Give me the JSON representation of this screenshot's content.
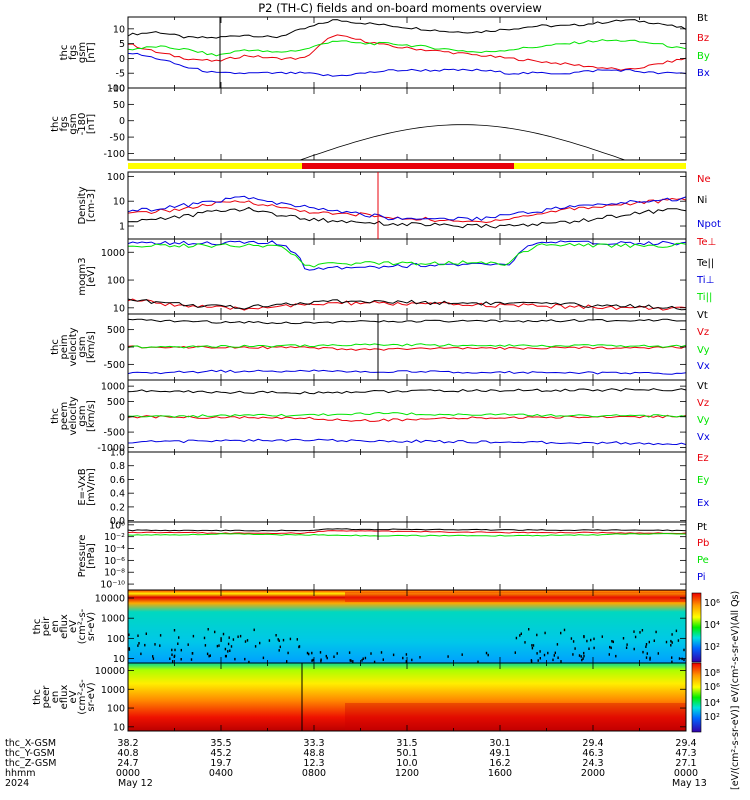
{
  "title": "P2 (TH-C) fields and on-board moments overview",
  "colors": {
    "black": "#000000",
    "red": "#e8000b",
    "green": "#00e400",
    "blue": "#0000e0",
    "yellow": "#ffff00"
  },
  "chart_data": [
    {
      "type": "line",
      "ylabel": [
        "thc",
        "fgs",
        "gsm",
        "[nT]"
      ],
      "ylim": [
        -10,
        14
      ],
      "yticks": [
        "10",
        "5",
        "0",
        "-5",
        "-10"
      ],
      "ytick_values": [
        10,
        5,
        0,
        -5,
        -10
      ],
      "series": [
        {
          "name": "Bt",
          "color": "black",
          "values": [
            8,
            9,
            7,
            7,
            8,
            7,
            10,
            13,
            12,
            11,
            10,
            9,
            9,
            10,
            11,
            11,
            12,
            13,
            12,
            10
          ]
        },
        {
          "name": "Bz",
          "color": "red",
          "values": [
            5,
            2,
            0,
            -1,
            1,
            0,
            0,
            8,
            6,
            4,
            3,
            2,
            1,
            0,
            -1,
            -2,
            -3,
            -4,
            -2,
            0
          ]
        },
        {
          "name": "By",
          "color": "green",
          "values": [
            3,
            4,
            3,
            1,
            3,
            2,
            3,
            6,
            5,
            5,
            4,
            3,
            2,
            3,
            4,
            5,
            6,
            6,
            5,
            3
          ]
        },
        {
          "name": "Bx",
          "color": "blue",
          "values": [
            2,
            0,
            -3,
            -5,
            -5,
            -5,
            -5,
            -6,
            -5,
            -4,
            -4,
            -4,
            -4,
            -5,
            -5,
            -5,
            -4,
            -4,
            -5,
            -5
          ]
        }
      ]
    },
    {
      "type": "line",
      "ylabel": [
        "thc",
        "fgs",
        "gsm",
        "-180",
        "[nT]"
      ],
      "ylim": [
        -120,
        100
      ],
      "yticks": [
        "100",
        "50",
        "0",
        "-50",
        "-100"
      ],
      "ytick_values": [
        100,
        50,
        0,
        -50,
        -100
      ]
    },
    {
      "type": "line",
      "ylabel": [
        "Density",
        "[cm-3]"
      ],
      "scale": "log",
      "ylim": [
        0.3,
        150
      ],
      "yticks": [
        "100",
        "10",
        "1"
      ],
      "ytick_values": [
        100,
        10,
        1
      ],
      "series": [
        {
          "name": "Ne",
          "color": "red",
          "values": [
            3,
            4,
            5,
            8,
            10,
            6,
            4,
            3,
            3,
            2,
            2,
            1.5,
            1.5,
            2,
            3,
            5,
            6,
            8,
            10,
            12
          ]
        },
        {
          "name": "Ni",
          "color": "black",
          "values": [
            1.5,
            2,
            2.5,
            4,
            5,
            3,
            2,
            1.6,
            1.5,
            1.2,
            1.2,
            1,
            1,
            1,
            1.2,
            1.5,
            2,
            3,
            4,
            5
          ]
        },
        {
          "name": "Npot",
          "color": "blue",
          "values": [
            4,
            5,
            7,
            10,
            15,
            8,
            6,
            4,
            3,
            2,
            2,
            2,
            2,
            3,
            4,
            6,
            7,
            9,
            11,
            13
          ]
        }
      ]
    },
    {
      "type": "line",
      "ylabel": [
        "moqm3",
        "[eV]"
      ],
      "scale": "log",
      "ylim": [
        6,
        3000
      ],
      "yticks": [
        "1000",
        "100",
        "10"
      ],
      "ytick_values": [
        1000,
        100,
        10
      ],
      "series": [
        {
          "name": "Te⊥",
          "color": "red",
          "values": [
            20,
            15,
            12,
            10,
            9,
            12,
            12,
            15,
            15,
            14,
            14,
            13,
            13,
            12,
            12,
            11,
            11,
            10,
            10,
            9
          ]
        },
        {
          "name": "Te||",
          "color": "black",
          "values": [
            22,
            16,
            13,
            11,
            10,
            14,
            14,
            18,
            17,
            16,
            16,
            15,
            15,
            14,
            14,
            13,
            12,
            12,
            11,
            10
          ]
        },
        {
          "name": "Ti⊥",
          "color": "blue",
          "values": [
            2200,
            2200,
            2200,
            2200,
            2200,
            2200,
            250,
            300,
            300,
            320,
            350,
            360,
            350,
            340,
            2200,
            2200,
            2200,
            2200,
            2200,
            2200
          ]
        },
        {
          "name": "Ti||",
          "color": "green",
          "values": [
            1800,
            1800,
            1800,
            1800,
            1800,
            1800,
            300,
            380,
            400,
            420,
            420,
            430,
            420,
            400,
            1800,
            1800,
            1800,
            1800,
            1800,
            1800
          ]
        }
      ]
    },
    {
      "type": "line",
      "ylabel": [
        "thc",
        "peim",
        "velocity",
        "gsm",
        "[km/s]"
      ],
      "ylim": [
        -950,
        950
      ],
      "yticks": [
        "500",
        "0",
        "-500"
      ],
      "ytick_values": [
        500,
        0,
        -500
      ],
      "series": [
        {
          "name": "Vt",
          "color": "black",
          "values": [
            780,
            760,
            740,
            720,
            720,
            700,
            700,
            720,
            730,
            730,
            740,
            740,
            740,
            750,
            750,
            760,
            760,
            770,
            780,
            780
          ]
        },
        {
          "name": "Vz",
          "color": "red",
          "values": [
            0,
            0,
            0,
            0,
            0,
            -20,
            -20,
            -60,
            -80,
            -60,
            -50,
            -40,
            -40,
            -40,
            -30,
            -30,
            -20,
            -20,
            -10,
            0
          ]
        },
        {
          "name": "Vy",
          "color": "green",
          "values": [
            10,
            10,
            10,
            20,
            20,
            30,
            40,
            50,
            60,
            60,
            60,
            50,
            50,
            50,
            40,
            40,
            40,
            30,
            20,
            20
          ]
        },
        {
          "name": "Vx",
          "color": "blue",
          "values": [
            -760,
            -740,
            -720,
            -700,
            -700,
            -700,
            -690,
            -700,
            -700,
            -710,
            -710,
            -720,
            -720,
            -730,
            -740,
            -740,
            -750,
            -750,
            -760,
            -760
          ]
        }
      ]
    },
    {
      "type": "line",
      "ylabel": [
        "thc",
        "peem",
        "velocity",
        "gsm",
        "[km/s]"
      ],
      "ylim": [
        -1150,
        1200
      ],
      "yticks": [
        "1000",
        "500",
        "0",
        "-500",
        "-1000"
      ],
      "ytick_values": [
        1000,
        500,
        0,
        -500,
        -1000
      ],
      "series": [
        {
          "name": "Vt",
          "color": "black",
          "values": [
            850,
            830,
            820,
            800,
            800,
            790,
            780,
            800,
            820,
            830,
            840,
            850,
            850,
            860,
            860,
            870,
            870,
            880,
            880,
            890
          ]
        },
        {
          "name": "Vz",
          "color": "red",
          "values": [
            0,
            0,
            -20,
            -20,
            -30,
            -40,
            -40,
            -100,
            -120,
            -100,
            -80,
            -60,
            -40,
            -30,
            -20,
            -10,
            0,
            0,
            10,
            10
          ]
        },
        {
          "name": "Vy",
          "color": "green",
          "values": [
            20,
            20,
            20,
            30,
            30,
            40,
            50,
            80,
            100,
            100,
            90,
            80,
            70,
            60,
            50,
            40,
            40,
            30,
            30,
            20
          ]
        },
        {
          "name": "Vx",
          "color": "blue",
          "values": [
            -820,
            -810,
            -800,
            -780,
            -780,
            -770,
            -760,
            -780,
            -790,
            -800,
            -800,
            -810,
            -820,
            -830,
            -840,
            -850,
            -850,
            -860,
            -870,
            -880
          ]
        }
      ]
    },
    {
      "type": "line",
      "ylabel": [
        "E=-VxB",
        "[mV/m]"
      ],
      "ylim": [
        -0.02,
        1.0
      ],
      "yticks": [
        "1.0",
        "0.8",
        "0.6",
        "0.4",
        "0.2",
        "0.0"
      ],
      "ytick_values": [
        1.0,
        0.8,
        0.6,
        0.4,
        0.2,
        0.0
      ],
      "series": [
        {
          "name": "Ez",
          "color": "red",
          "values": []
        },
        {
          "name": "Ey",
          "color": "green",
          "values": []
        },
        {
          "name": "Ex",
          "color": "blue",
          "values": []
        }
      ]
    },
    {
      "type": "line",
      "ylabel": [
        "Pressure",
        "[nPa]"
      ],
      "scale": "log",
      "ylim": [
        1e-11,
        3
      ],
      "yticks": [
        "10⁰",
        "10⁻²",
        "10⁻⁴",
        "10⁻⁶",
        "10⁻⁸",
        "10⁻¹⁰"
      ],
      "ytick_values": [
        1,
        0.01,
        0.0001,
        1e-06,
        1e-08,
        1e-10
      ],
      "series": [
        {
          "name": "Pt",
          "color": "black",
          "values": [
            0.12,
            0.12,
            0.12,
            0.11,
            0.11,
            0.11,
            0.11,
            0.2,
            0.18,
            0.17,
            0.16,
            0.15,
            0.15,
            0.14,
            0.14,
            0.13,
            0.13,
            0.13,
            0.12,
            0.12
          ]
        },
        {
          "name": "Pb",
          "color": "red",
          "values": [
            0.05,
            0.05,
            0.05,
            0.04,
            0.04,
            0.04,
            0.04,
            0.1,
            0.09,
            0.08,
            0.07,
            0.06,
            0.06,
            0.05,
            0.05,
            0.05,
            0.05,
            0.04,
            0.04,
            0.04
          ]
        },
        {
          "name": "Pe",
          "color": "green",
          "values": [
            0.02,
            0.02,
            0.02,
            0.03,
            0.03,
            0.02,
            0.02,
            0.02,
            0.015,
            0.015,
            0.015,
            0.015,
            0.015,
            0.015,
            0.015,
            0.02,
            0.02,
            0.03,
            0.03,
            0.03
          ]
        },
        {
          "name": "Pi",
          "color": "blue",
          "values": []
        }
      ]
    },
    {
      "type": "heatmap",
      "ylabel": [
        "thc",
        "peir",
        "en",
        "eflux",
        "eV",
        "(cm²-s-",
        "sr-eV)"
      ],
      "scale": "log",
      "ylim": [
        6,
        25000
      ],
      "yticks": [
        "10000",
        "1000",
        "100",
        "10"
      ],
      "ytick_values": [
        10000,
        1000,
        100,
        10
      ]
    },
    {
      "type": "heatmap",
      "ylabel": [
        "thc",
        "peer",
        "en",
        "eflux",
        "eV",
        "(cm²-s-",
        "sr-eV)"
      ],
      "scale": "log",
      "ylim": [
        6,
        25000
      ],
      "yticks": [
        "10000",
        "1000",
        "100",
        "10"
      ],
      "ytick_values": [
        10000,
        1000,
        100,
        10
      ]
    }
  ],
  "colorbar": {
    "label": "[eV/(cm²-s-sr-eV)] eV/(cm²-s-sr-eV)(All Qs)",
    "ticks": [
      "10⁶",
      "10⁴",
      "10²",
      "10⁸",
      "10⁶",
      "10⁴",
      "10²"
    ]
  },
  "footer": {
    "rows": [
      {
        "label": "thc_X-GSM",
        "values": [
          "38.2",
          "35.5",
          "33.3",
          "31.5",
          "30.1",
          "29.4",
          "29.4"
        ]
      },
      {
        "label": "thc_Y-GSM",
        "values": [
          "40.8",
          "45.2",
          "48.8",
          "50.1",
          "49.1",
          "46.3",
          "47.3"
        ]
      },
      {
        "label": "thc_Z-GSM",
        "values": [
          "24.7",
          "19.7",
          "12.3",
          "10.0",
          "16.2",
          "24.3",
          "27.1"
        ]
      },
      {
        "label": "hhmm",
        "values": [
          "0000",
          "0400",
          "0800",
          "1200",
          "1600",
          "2000",
          "0000"
        ]
      }
    ],
    "year": "2024",
    "dates": [
      "May 12",
      "May 13"
    ]
  }
}
